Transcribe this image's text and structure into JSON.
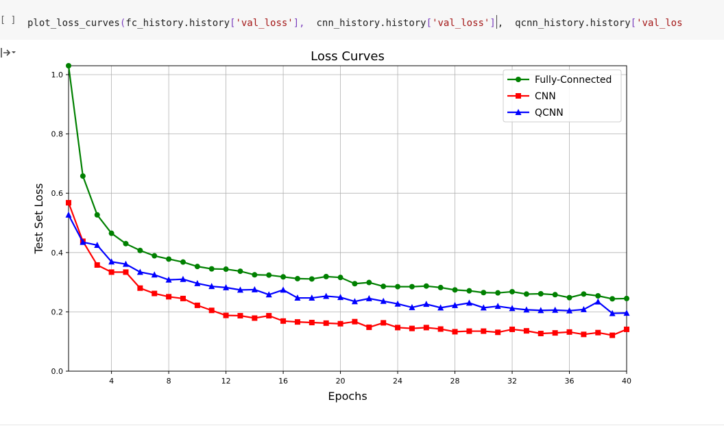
{
  "cell": {
    "bracket": "[ ]",
    "code_parts": [
      {
        "t": "plot_loss_curves",
        "c": "fn"
      },
      {
        "t": "(",
        "c": "paren"
      },
      {
        "t": "fc_history.history",
        "c": "fn"
      },
      {
        "t": "[",
        "c": "paren"
      },
      {
        "t": "'val_loss'",
        "c": "str"
      },
      {
        "t": "],  ",
        "c": "paren"
      },
      {
        "t": "cnn_history.history",
        "c": "fn"
      },
      {
        "t": "[",
        "c": "paren"
      },
      {
        "t": "'val_loss'",
        "c": "str"
      },
      {
        "t": "]",
        "c": "paren",
        "cursor": true
      },
      {
        "t": ",  ",
        "c": "fn"
      },
      {
        "t": "qcnn_history.history",
        "c": "fn"
      },
      {
        "t": "[",
        "c": "paren"
      },
      {
        "t": "'val_los",
        "c": "str"
      }
    ],
    "output_icon": "collapse-output-icon"
  },
  "chart_data": {
    "type": "line",
    "title": "Loss Curves",
    "xlabel": "Epochs",
    "ylabel": "Test Set Loss",
    "xlim": [
      1,
      40
    ],
    "ylim": [
      0.0,
      1.03
    ],
    "xticks": [
      4,
      8,
      12,
      16,
      20,
      24,
      28,
      32,
      36,
      40
    ],
    "yticks": [
      0.0,
      0.2,
      0.4,
      0.6,
      0.8,
      1.0
    ],
    "ytick_labels": [
      "0.0",
      "0.2",
      "0.4",
      "0.6",
      "0.8",
      "1.0"
    ],
    "grid": true,
    "legend_position": "top-right",
    "x": [
      1,
      2,
      3,
      4,
      5,
      6,
      7,
      8,
      9,
      10,
      11,
      12,
      13,
      14,
      15,
      16,
      17,
      18,
      19,
      20,
      21,
      22,
      23,
      24,
      25,
      26,
      27,
      28,
      29,
      30,
      31,
      32,
      33,
      34,
      35,
      36,
      37,
      38,
      39,
      40
    ],
    "series": [
      {
        "name": "Fully-Connected",
        "color": "#008000",
        "marker": "circle",
        "values": [
          1.03,
          0.658,
          0.527,
          0.465,
          0.43,
          0.407,
          0.389,
          0.378,
          0.368,
          0.353,
          0.345,
          0.344,
          0.337,
          0.325,
          0.324,
          0.318,
          0.312,
          0.311,
          0.319,
          0.316,
          0.295,
          0.299,
          0.286,
          0.285,
          0.285,
          0.287,
          0.282,
          0.274,
          0.271,
          0.265,
          0.264,
          0.268,
          0.26,
          0.261,
          0.258,
          0.248,
          0.26,
          0.254,
          0.244,
          0.245
        ]
      },
      {
        "name": "CNN",
        "color": "#ff0000",
        "marker": "square",
        "values": [
          0.568,
          0.438,
          0.358,
          0.334,
          0.334,
          0.28,
          0.262,
          0.251,
          0.245,
          0.222,
          0.205,
          0.188,
          0.187,
          0.179,
          0.187,
          0.169,
          0.166,
          0.164,
          0.162,
          0.16,
          0.167,
          0.148,
          0.163,
          0.147,
          0.144,
          0.147,
          0.142,
          0.133,
          0.135,
          0.135,
          0.131,
          0.141,
          0.136,
          0.127,
          0.129,
          0.132,
          0.124,
          0.13,
          0.121,
          0.141
        ]
      },
      {
        "name": "QCNN",
        "color": "#0000ff",
        "marker": "triangle",
        "values": [
          0.527,
          0.435,
          0.425,
          0.369,
          0.361,
          0.334,
          0.325,
          0.308,
          0.31,
          0.296,
          0.286,
          0.282,
          0.274,
          0.275,
          0.258,
          0.274,
          0.247,
          0.247,
          0.253,
          0.249,
          0.235,
          0.245,
          0.236,
          0.227,
          0.215,
          0.226,
          0.214,
          0.222,
          0.23,
          0.214,
          0.219,
          0.212,
          0.207,
          0.205,
          0.206,
          0.204,
          0.208,
          0.234,
          0.195,
          0.196
        ]
      }
    ]
  }
}
